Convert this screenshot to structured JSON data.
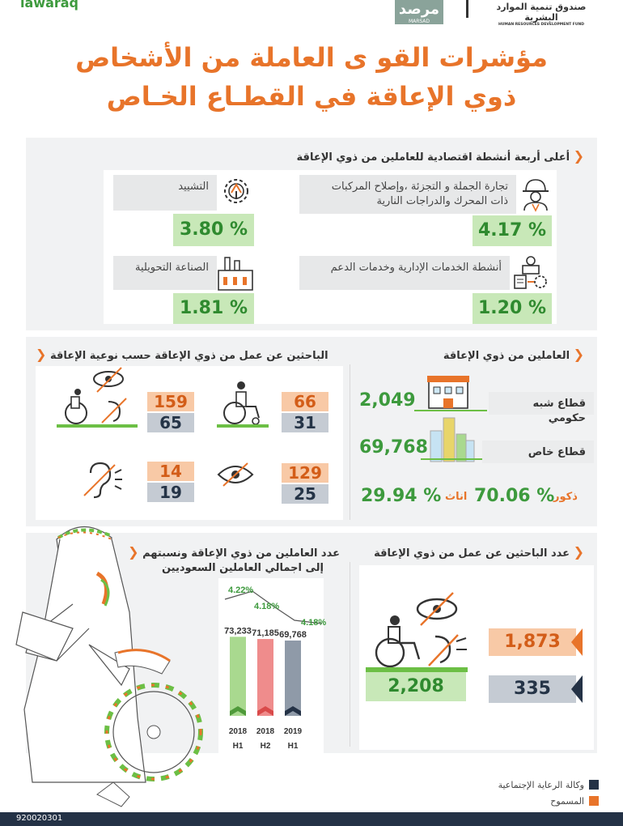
{
  "header": {
    "partial_logo_text": "lawaraq",
    "marsad_logo_ar": "مرصد",
    "marsad_logo_en": "MARSAD",
    "hrdf_name_ar": "صندوق تنمية الموارد البشرية",
    "hrdf_name_en": "HUMAN RESOURCES DEVELOPMENT FUND"
  },
  "title": {
    "line1": "مؤشرات القو ى العاملة من الأشخاص",
    "line2": "ذوي الإعاقة في القطـاع الخـاص"
  },
  "top_activities": {
    "heading": "أعلى أربعة أنشطة اقتصادية للعاملين من ذوي الإعاقة",
    "items": [
      {
        "label_line1": "تجارة الجملة و التجزئة ،وإصلاح المركبات",
        "label_line2": "ذات المحرك  والدراجات النارية",
        "value": "4.17 %",
        "icon": "worker-helmet-icon"
      },
      {
        "label_line1": "التشييد",
        "label_line2": "",
        "value": "3.80 %",
        "icon": "construction-gear-icon"
      },
      {
        "label_line1": "أنشطة الخدمات الإدارية وخدمات الدعم",
        "label_line2": "",
        "value": "1.20 %",
        "icon": "admin-services-icon"
      },
      {
        "label_line1": "الصناعة التحويلية",
        "label_line2": "",
        "value": "1.81 %",
        "icon": "factory-icon"
      }
    ]
  },
  "employed": {
    "heading": "العاملين من ذوي الإعاقة",
    "semi_gov_label": "قطاع شبه حكومي",
    "semi_gov_value": "2,049",
    "private_label": "قطاع خاص",
    "private_value": "69,768",
    "males_label": "ذكور",
    "males_value": "70.06 %",
    "females_label": "اناث",
    "females_value": "29.94 %"
  },
  "job_seekers_by_type": {
    "heading": "الباحثين عن عمل من ذوي الإعاقة حسب نوعية الإعاقة",
    "items": [
      {
        "icon": "wheelchair-icon",
        "orange": "66",
        "gray": "31"
      },
      {
        "icon": "multiple-disability-icon",
        "orange": "159",
        "gray": "65"
      },
      {
        "icon": "visual-impairment-icon",
        "orange": "129",
        "gray": "25"
      },
      {
        "icon": "hearing-impairment-icon",
        "orange": "14",
        "gray": "19"
      }
    ]
  },
  "job_seekers_total": {
    "heading": "عدد الباحثين عن عمل من ذوي الإعاقة",
    "orange_value": "1,873",
    "gray_value": "335",
    "total_value": "2,208"
  },
  "employed_chart": {
    "heading_line1": "عدد العاملين من ذوي الإعاقة ونسبتهم",
    "heading_line2": "إلى اجمالي العاملين السعوديين"
  },
  "chart_data": {
    "type": "bar",
    "categories": [
      "2018 H1",
      "2018 H2",
      "2019 H1"
    ],
    "category_years": [
      "2018",
      "2018",
      "2019"
    ],
    "category_halves": [
      "H1",
      "H2",
      "H1"
    ],
    "values": [
      73233,
      71185,
      69768
    ],
    "value_labels": [
      "73,233",
      "71,185",
      "69,768"
    ],
    "share_labels": [
      "4.22%",
      "4.18%",
      "4.18%"
    ],
    "bar_colors": [
      "#a9d98f",
      "#ef8c8c",
      "#8f9aa8"
    ],
    "ylim": [
      0,
      75000
    ]
  },
  "legend": {
    "items": [
      {
        "label": "وكالة الرعاية الإجتماعية",
        "color": "#243246"
      },
      {
        "label": "المسموح",
        "color": "#e8742a"
      }
    ]
  },
  "footer": {
    "partial_number": "920020301"
  }
}
